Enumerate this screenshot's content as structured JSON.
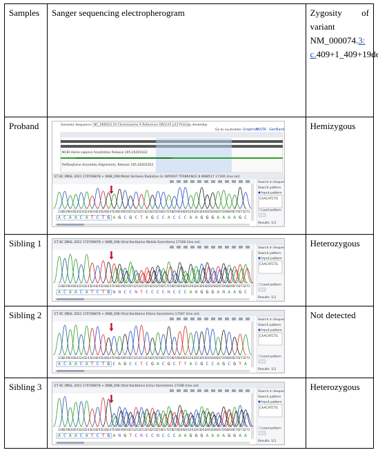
{
  "headers": {
    "samples": "Samples",
    "electropherogram": "Sanger sequencing electropherogram",
    "zygosity_prefix": "Zygosity of variant",
    "zygosity_accession_a": "NM_000074.",
    "zygosity_accession_b": "3:",
    "zygosity_accession_c": "c.",
    "zygosity_accession_d": "409+1_409+19del"
  },
  "rows": [
    {
      "sample": "Proband",
      "zygosity": "Hemizygous"
    },
    {
      "sample": "Sibling 1",
      "zygosity": "Heterozygous"
    },
    {
      "sample": "Sibling 2",
      "zygosity": "Not detected"
    },
    {
      "sample": "Sibling 3",
      "zygosity": "Heterozygous"
    }
  ],
  "viewer": {
    "genomic_label": "Genomic Sequence:",
    "genomic_select": "NC_000023.10 Chromosome X Reference GRCh37.p13 Primary Assembly",
    "goto": "Go to nucleotide:",
    "links": [
      "Graphics",
      "FASTA",
      "GenBank"
    ],
    "search_panel": "Search in Sequence",
    "search_pattern": "Search pattern",
    "input_pattern": "Input pattern",
    "pattern_value": "CAACATCTG",
    "load_pattern": "Load pattern",
    "results": "Results: 1/1"
  },
  "traces": {
    "proband": {
      "title": "ET 8C DNSL 2021 170708878 + W8B_008 Metal Varilexio Radiation Ec WP0007 TFRBRANCE 8 W8B517 1716R (line sel)",
      "bases": "ACAACATCTGAGCGCTAGCCACCCAAGGGAAAAGC"
    },
    "sibling1": {
      "title": "ET 8C DNSL 2021 170708878 + W8B_008 Vihal Kantbaine Walida Sasmitema 17168 (line sel)",
      "bases": "ACAACATCTGNNCCNTCCCCNCCCANGGGANAAGC"
    },
    "sibling2": {
      "title": "ET 8C DNSL 2021 170708878 + W8B_008 Vihal Kantbaine Ettera Sasmitema 17187 (line sel)",
      "bases": "ACAACATCTGCAGCCTCGACGCTTACGCCAGCGTA"
    },
    "sibling3": {
      "title": "ET 8C DNSL 2021 170708878 + W8B_008 Vihal Kantbaine Eshur Sasmitema 17188 (line sel)",
      "bases": "ACAACATCTGANGTCRCCNCCCAAGGGAAAAGGAA"
    }
  }
}
